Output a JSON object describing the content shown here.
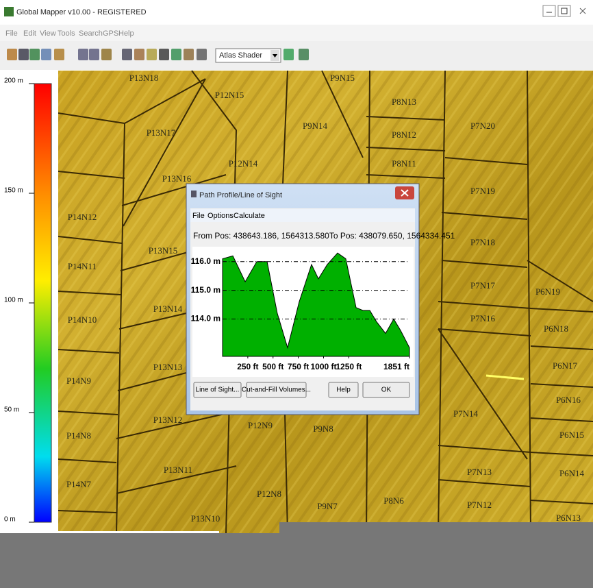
{
  "window": {
    "title": "Global Mapper v10.00 - REGISTERED"
  },
  "menu": [
    "File",
    "Edit",
    "View",
    "Tools",
    "Search",
    "GPS",
    "Help"
  ],
  "toolbar": {
    "shader": "Atlas Shader"
  },
  "elevation_legend": {
    "ylim": [
      0,
      200
    ],
    "yticks": [
      {
        "value": 200,
        "label": "200 m"
      },
      {
        "value": 150,
        "label": "150 m"
      },
      {
        "value": 100,
        "label": "100 m"
      },
      {
        "value": 50,
        "label": "50 m"
      },
      {
        "value": 0,
        "label": "0 m"
      }
    ]
  },
  "map": {
    "parcels": [
      "P13N18",
      "P12N15",
      "P9N15",
      "P8N13",
      "P9N14",
      "P13N17",
      "P8N12",
      "P7N20",
      "P12N14",
      "P8N11",
      "P13N16",
      "P7N19",
      "P14N12",
      "P13N15",
      "P7N18",
      "P14N11",
      "P7N17",
      "P6N19",
      "P13N14",
      "P14N10",
      "P7N16",
      "P6N18",
      "P13N13",
      "P14N9",
      "P6N17",
      "P6N16",
      "P7N14",
      "P13N12",
      "P12N9",
      "P9N8",
      "P14N8",
      "P6N15",
      "P13N11",
      "P7N13",
      "P6N14",
      "P14N7",
      "P12N8",
      "P8N6",
      "P7N12",
      "P9N7",
      "P13N10",
      "P6N13"
    ]
  },
  "dialog": {
    "title": "Path Profile/Line of Sight",
    "menu": [
      "File",
      "Options",
      "Calculate"
    ],
    "positions": "From Pos: 438643.186, 1564313.580To Pos: 438079.650, 1564334.451",
    "profile": {
      "type": "area",
      "color": "#00b000",
      "x": [
        0,
        102,
        224,
        339,
        441,
        542,
        644,
        759,
        881,
        949,
        1037,
        1139,
        1220,
        1322,
        1390,
        1458,
        1526,
        1614,
        1695,
        1763,
        1851
      ],
      "values": [
        116.1,
        116.2,
        115.3,
        116.0,
        116.0,
        114.2,
        113.0,
        114.6,
        115.9,
        115.4,
        115.9,
        116.3,
        116.1,
        114.4,
        114.3,
        114.3,
        113.9,
        113.5,
        114.0,
        113.6,
        113.0
      ],
      "xlim": [
        0,
        1851
      ],
      "xticks": [
        {
          "value": 250,
          "label": "250 ft"
        },
        {
          "value": 500,
          "label": "500 ft"
        },
        {
          "value": 750,
          "label": "750 ft"
        },
        {
          "value": 1000,
          "label": "1000 ft"
        },
        {
          "value": 1250,
          "label": "1250 ft"
        },
        {
          "value": 1851,
          "label": "1851 ft"
        }
      ],
      "ylim": [
        112.7,
        116.4
      ],
      "yticks": [
        {
          "value": 116,
          "label": "116.0 m"
        },
        {
          "value": 115,
          "label": "115.0 m"
        },
        {
          "value": 114,
          "label": "114.0 m"
        }
      ],
      "grid": true
    },
    "buttons": [
      "Line of Sight...",
      "Cut-and-Fill Volumes...",
      "Help",
      "OK"
    ]
  }
}
